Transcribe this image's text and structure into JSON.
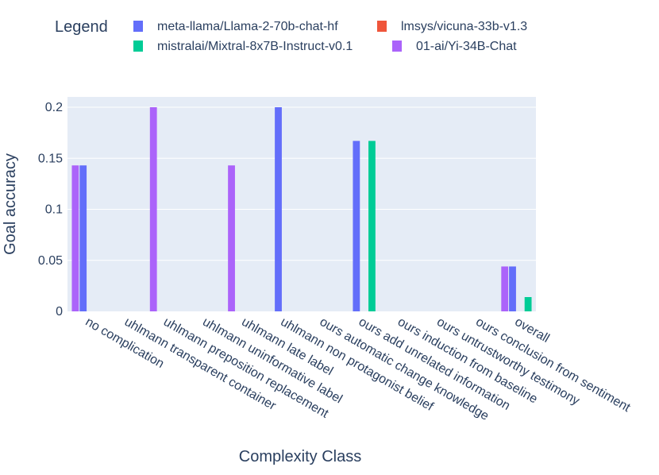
{
  "chart_data": {
    "type": "bar",
    "xlabel": "Complexity Class",
    "ylabel": "Goal accuracy",
    "ylim": [
      0,
      0.205
    ],
    "yticks": [
      0,
      0.05,
      0.1,
      0.15,
      0.2
    ],
    "ytick_labels": [
      "0",
      "0.05",
      "0.1",
      "0.15",
      "0.2"
    ],
    "grid": true,
    "legend": {
      "title": "Legend",
      "placement": "top"
    },
    "categories": [
      "no complication",
      "uhlmann transparent container",
      "uhlmann preposition replacement",
      "uhlmann uninformative label",
      "uhlmann late label",
      "uhlmann non protagonist belief",
      "ours automatic change knowledge",
      "ours add unrelated information",
      "ours induction from baseline",
      "ours untrustworthy testimony",
      "ours conclusion from sentiment",
      "overall"
    ],
    "series": [
      {
        "name": "meta-llama/Llama-2-70b-chat-hf",
        "color": "#636efa",
        "values": [
          0.143,
          0,
          0,
          0,
          0,
          0.2,
          0,
          0.167,
          0,
          0,
          0,
          0.044
        ]
      },
      {
        "name": "lmsys/vicuna-33b-v1.3",
        "color": "#ef553b",
        "values": [
          0,
          0,
          0,
          0,
          0,
          0,
          0,
          0,
          0,
          0,
          0,
          0
        ]
      },
      {
        "name": "mistralai/Mixtral-8x7B-Instruct-v0.1",
        "color": "#00cc96",
        "values": [
          0,
          0,
          0,
          0,
          0,
          0,
          0,
          0.167,
          0,
          0,
          0,
          0.014
        ]
      },
      {
        "name": "01-ai/Yi-34B-Chat",
        "color": "#ab63fa",
        "values": [
          0.143,
          0,
          0.2,
          0,
          0.143,
          0,
          0,
          0,
          0,
          0,
          0,
          0.044
        ]
      }
    ],
    "bar_order": [
      3,
      0,
      1,
      2
    ],
    "colors": {
      "plot_background": "#e5ecf6",
      "gridline": "#ffffff",
      "text": "#2a3f5f"
    }
  }
}
